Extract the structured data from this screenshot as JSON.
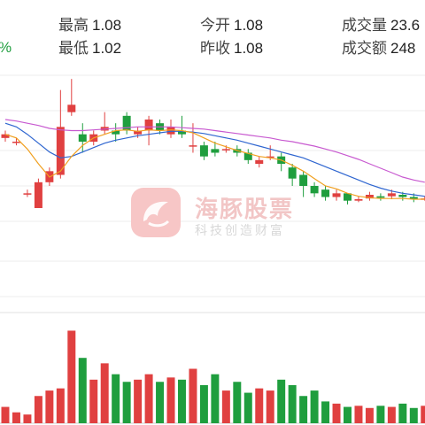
{
  "header": {
    "row1": [
      {
        "label": "最高",
        "value": "1.08"
      },
      {
        "label": "今开",
        "value": "1.08"
      },
      {
        "label": "成交量",
        "value": "23.6"
      }
    ],
    "row2": [
      {
        "label": "最低",
        "value": "1.02"
      },
      {
        "label": "昨收",
        "value": "1.08"
      },
      {
        "label": "成交额",
        "value": "248"
      }
    ],
    "change_suffix": "%"
  },
  "watermark": {
    "title": "海豚股票",
    "subtitle": "科技创造财富"
  },
  "colors": {
    "up": "#e04040",
    "down": "#1f9e3e",
    "ma_short": "#f0a020",
    "ma_mid": "#2f66d0",
    "ma_long": "#c85ad0",
    "grid": "#eeeeee"
  },
  "chart_data": {
    "type": "candlestick",
    "price_ylim": [
      0.9,
      1.2
    ],
    "candles": [
      {
        "o": 1.115,
        "c": 1.12,
        "h": 1.125,
        "l": 1.11
      },
      {
        "o": 1.11,
        "c": 1.11,
        "h": 1.115,
        "l": 1.105
      },
      {
        "o": 1.04,
        "c": 1.04,
        "h": 1.045,
        "l": 1.035
      },
      {
        "o": 1.02,
        "c": 1.055,
        "h": 1.06,
        "l": 1.02
      },
      {
        "o": 1.055,
        "c": 1.07,
        "h": 1.075,
        "l": 1.05
      },
      {
        "o": 1.065,
        "c": 1.13,
        "h": 1.18,
        "l": 1.06
      },
      {
        "o": 1.15,
        "c": 1.16,
        "h": 1.195,
        "l": 1.145
      },
      {
        "o": 1.12,
        "c": 1.11,
        "h": 1.135,
        "l": 1.095
      },
      {
        "o": 1.11,
        "c": 1.12,
        "h": 1.125,
        "l": 1.105
      },
      {
        "o": 1.125,
        "c": 1.13,
        "h": 1.15,
        "l": 1.12
      },
      {
        "o": 1.125,
        "c": 1.12,
        "h": 1.135,
        "l": 1.11
      },
      {
        "o": 1.145,
        "c": 1.125,
        "h": 1.15,
        "l": 1.12
      },
      {
        "o": 1.12,
        "c": 1.125,
        "h": 1.13,
        "l": 1.115
      },
      {
        "o": 1.125,
        "c": 1.14,
        "h": 1.145,
        "l": 1.105
      },
      {
        "o": 1.135,
        "c": 1.125,
        "h": 1.14,
        "l": 1.12
      },
      {
        "o": 1.12,
        "c": 1.13,
        "h": 1.14,
        "l": 1.115
      },
      {
        "o": 1.125,
        "c": 1.12,
        "h": 1.145,
        "l": 1.115
      },
      {
        "o": 1.105,
        "c": 1.105,
        "h": 1.135,
        "l": 1.095
      },
      {
        "o": 1.105,
        "c": 1.09,
        "h": 1.11,
        "l": 1.085
      },
      {
        "o": 1.1,
        "c": 1.095,
        "h": 1.11,
        "l": 1.09
      },
      {
        "o": 1.1,
        "c": 1.1,
        "h": 1.105,
        "l": 1.095
      },
      {
        "o": 1.1,
        "c": 1.095,
        "h": 1.105,
        "l": 1.09
      },
      {
        "o": 1.095,
        "c": 1.085,
        "h": 1.1,
        "l": 1.08
      },
      {
        "o": 1.08,
        "c": 1.085,
        "h": 1.09,
        "l": 1.075
      },
      {
        "o": 1.09,
        "c": 1.09,
        "h": 1.105,
        "l": 1.085
      },
      {
        "o": 1.09,
        "c": 1.08,
        "h": 1.095,
        "l": 1.07
      },
      {
        "o": 1.075,
        "c": 1.06,
        "h": 1.08,
        "l": 1.05
      },
      {
        "o": 1.065,
        "c": 1.05,
        "h": 1.07,
        "l": 1.035
      },
      {
        "o": 1.05,
        "c": 1.04,
        "h": 1.055,
        "l": 1.035
      },
      {
        "o": 1.045,
        "c": 1.035,
        "h": 1.05,
        "l": 1.03
      },
      {
        "o": 1.035,
        "c": 1.04,
        "h": 1.045,
        "l": 1.03
      },
      {
        "o": 1.04,
        "c": 1.03,
        "h": 1.04,
        "l": 1.025
      },
      {
        "o": 1.03,
        "c": 1.032,
        "h": 1.036,
        "l": 1.028
      },
      {
        "o": 1.033,
        "c": 1.038,
        "h": 1.042,
        "l": 1.03
      },
      {
        "o": 1.036,
        "c": 1.034,
        "h": 1.04,
        "l": 1.03
      },
      {
        "o": 1.036,
        "c": 1.04,
        "h": 1.045,
        "l": 1.032
      },
      {
        "o": 1.038,
        "c": 1.035,
        "h": 1.042,
        "l": 1.03
      },
      {
        "o": 1.035,
        "c": 1.032,
        "h": 1.04,
        "l": 1.028
      },
      {
        "o": 1.033,
        "c": 1.033,
        "h": 1.036,
        "l": 1.03
      }
    ],
    "ma_short": [
      1.12,
      1.115,
      1.1,
      1.08,
      1.062,
      1.07,
      1.09,
      1.105,
      1.115,
      1.12,
      1.125,
      1.126,
      1.124,
      1.126,
      1.125,
      1.126,
      1.125,
      1.122,
      1.115,
      1.108,
      1.103,
      1.098,
      1.094,
      1.09,
      1.088,
      1.085,
      1.078,
      1.07,
      1.06,
      1.05,
      1.046,
      1.04,
      1.036,
      1.034,
      1.033,
      1.033,
      1.033,
      1.032,
      1.032
    ],
    "ma_mid": [
      1.135,
      1.13,
      1.12,
      1.108,
      1.096,
      1.088,
      1.09,
      1.096,
      1.102,
      1.108,
      1.112,
      1.115,
      1.118,
      1.12,
      1.122,
      1.124,
      1.124,
      1.123,
      1.121,
      1.118,
      1.115,
      1.112,
      1.108,
      1.104,
      1.1,
      1.096,
      1.092,
      1.088,
      1.082,
      1.076,
      1.07,
      1.064,
      1.058,
      1.052,
      1.047,
      1.043,
      1.04,
      1.038,
      1.036
    ],
    "ma_long": [
      1.14,
      1.138,
      1.135,
      1.132,
      1.128,
      1.126,
      1.125,
      1.125,
      1.126,
      1.127,
      1.128,
      1.129,
      1.13,
      1.13,
      1.13,
      1.13,
      1.129,
      1.128,
      1.127,
      1.125,
      1.123,
      1.121,
      1.119,
      1.117,
      1.115,
      1.112,
      1.11,
      1.107,
      1.104,
      1.1,
      1.096,
      1.091,
      1.086,
      1.08,
      1.074,
      1.068,
      1.062,
      1.058,
      1.055
    ],
    "volumes": [
      15,
      10,
      8,
      25,
      30,
      32,
      85,
      60,
      40,
      55,
      45,
      38,
      40,
      45,
      38,
      42,
      40,
      50,
      35,
      45,
      30,
      38,
      28,
      32,
      30,
      40,
      35,
      25,
      30,
      20,
      18,
      15,
      16,
      14,
      16,
      15,
      18,
      14,
      16
    ],
    "volume_ylim": [
      0,
      100
    ]
  }
}
